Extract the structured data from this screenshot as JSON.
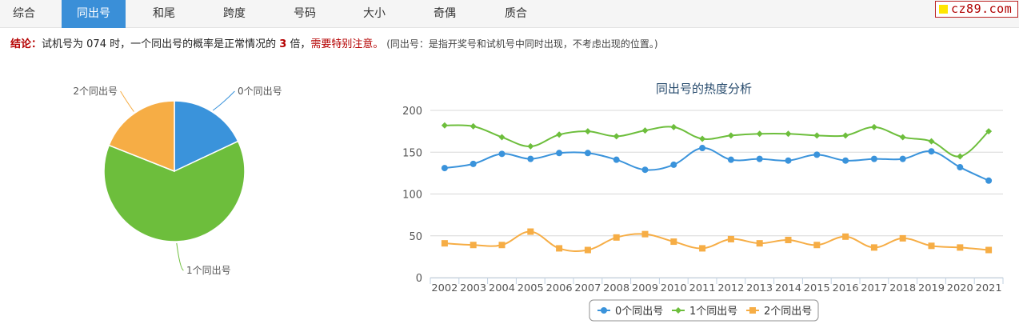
{
  "tabs": [
    {
      "label": "综合",
      "active": false
    },
    {
      "label": "同出号",
      "active": true
    },
    {
      "label": "和尾",
      "active": false
    },
    {
      "label": "跨度",
      "active": false
    },
    {
      "label": "号码",
      "active": false
    },
    {
      "label": "大小",
      "active": false
    },
    {
      "label": "奇偶",
      "active": false
    },
    {
      "label": "质合",
      "active": false
    }
  ],
  "logo": {
    "text": "cz89.com"
  },
  "conclusion": {
    "label": "结论：",
    "text_before": "试机号为 074 时，一个同出号的概率是正常情况的 ",
    "times": "3",
    "text_after": " 倍，",
    "warning": "需要特别注意。",
    "note": " (同出号：是指开奖号和试机号中同时出现，不考虑出现的位置。)"
  },
  "colors": {
    "s0": "#3a93db",
    "s1": "#6dbe3c",
    "s2": "#f6ad45",
    "accent": "#3a8fd8"
  },
  "chart_data": [
    {
      "type": "pie",
      "slices": [
        {
          "name": "0个同出号",
          "value": 18
        },
        {
          "name": "1个同出号",
          "value": 63
        },
        {
          "name": "2个同出号",
          "value": 19
        }
      ]
    },
    {
      "type": "line",
      "title": "同出号的热度分析",
      "x": [
        "2002",
        "2003",
        "2004",
        "2005",
        "2006",
        "2007",
        "2008",
        "2009",
        "2010",
        "2011",
        "2012",
        "2013",
        "2014",
        "2015",
        "2016",
        "2017",
        "2018",
        "2019",
        "2020",
        "2021"
      ],
      "ylim": [
        0,
        200
      ],
      "yticks": [
        0,
        50,
        100,
        150,
        200
      ],
      "grid": true,
      "legend": "bottom",
      "series": [
        {
          "name": "0个同出号",
          "values": [
            131,
            136,
            148,
            142,
            149,
            149,
            141,
            129,
            135,
            155,
            141,
            142,
            140,
            147,
            140,
            142,
            142,
            151,
            132,
            116
          ]
        },
        {
          "name": "1个同出号",
          "values": [
            182,
            181,
            168,
            157,
            171,
            175,
            169,
            176,
            180,
            166,
            170,
            172,
            172,
            170,
            170,
            180,
            168,
            163,
            145,
            175
          ]
        },
        {
          "name": "2个同出号",
          "values": [
            41,
            39,
            39,
            55,
            35,
            33,
            48,
            52,
            43,
            35,
            46,
            41,
            45,
            39,
            49,
            36,
            47,
            38,
            36,
            33
          ]
        }
      ]
    }
  ]
}
